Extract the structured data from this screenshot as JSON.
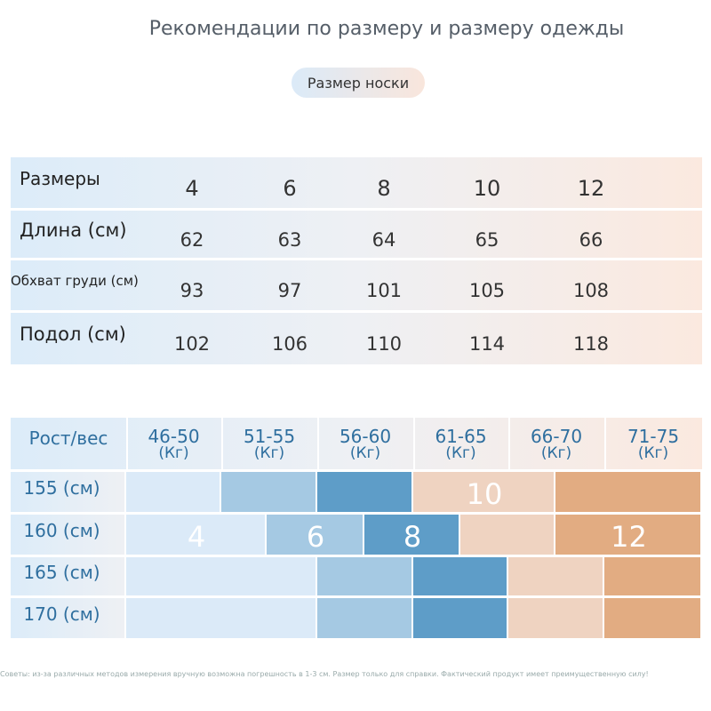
{
  "header": {
    "title": "Рекомендации по размеру и размеру одежды",
    "tab": "Размер носки"
  },
  "size_table": {
    "header": [
      "Размеры",
      4,
      6,
      8,
      10,
      12
    ],
    "rows": [
      [
        "Длина (см)",
        62,
        63,
        64,
        65,
        66
      ],
      [
        "Обхват груди (см)",
        93,
        97,
        101,
        105,
        108
      ],
      [
        "Подол (см)",
        102,
        106,
        110,
        114,
        118
      ]
    ]
  },
  "fit_table": {
    "corner": "Рост/вес",
    "columns": [
      {
        "range": "46-50",
        "unit": "(Кг)"
      },
      {
        "range": "51-55",
        "unit": "(Кг)"
      },
      {
        "range": "56-60",
        "unit": "(Кг)"
      },
      {
        "range": "61-65",
        "unit": "(Кг)"
      },
      {
        "range": "66-70",
        "unit": "(Кг)"
      },
      {
        "range": "71-75",
        "unit": "(Кг)"
      }
    ],
    "rows": [
      {
        "label": "155 (см)",
        "sizes": [
          10
        ]
      },
      {
        "label": "160 (см)",
        "sizes": [
          4,
          6,
          8,
          12
        ]
      },
      {
        "label": "165 (см)"
      },
      {
        "label": "170 (см)"
      }
    ]
  },
  "footer": {
    "note": "Советы: из-за различных методов измерения вручную возможна погрешность в 1-3 см. Размер только для справки. Фактический продукт имеет преимущественную силу!"
  }
}
